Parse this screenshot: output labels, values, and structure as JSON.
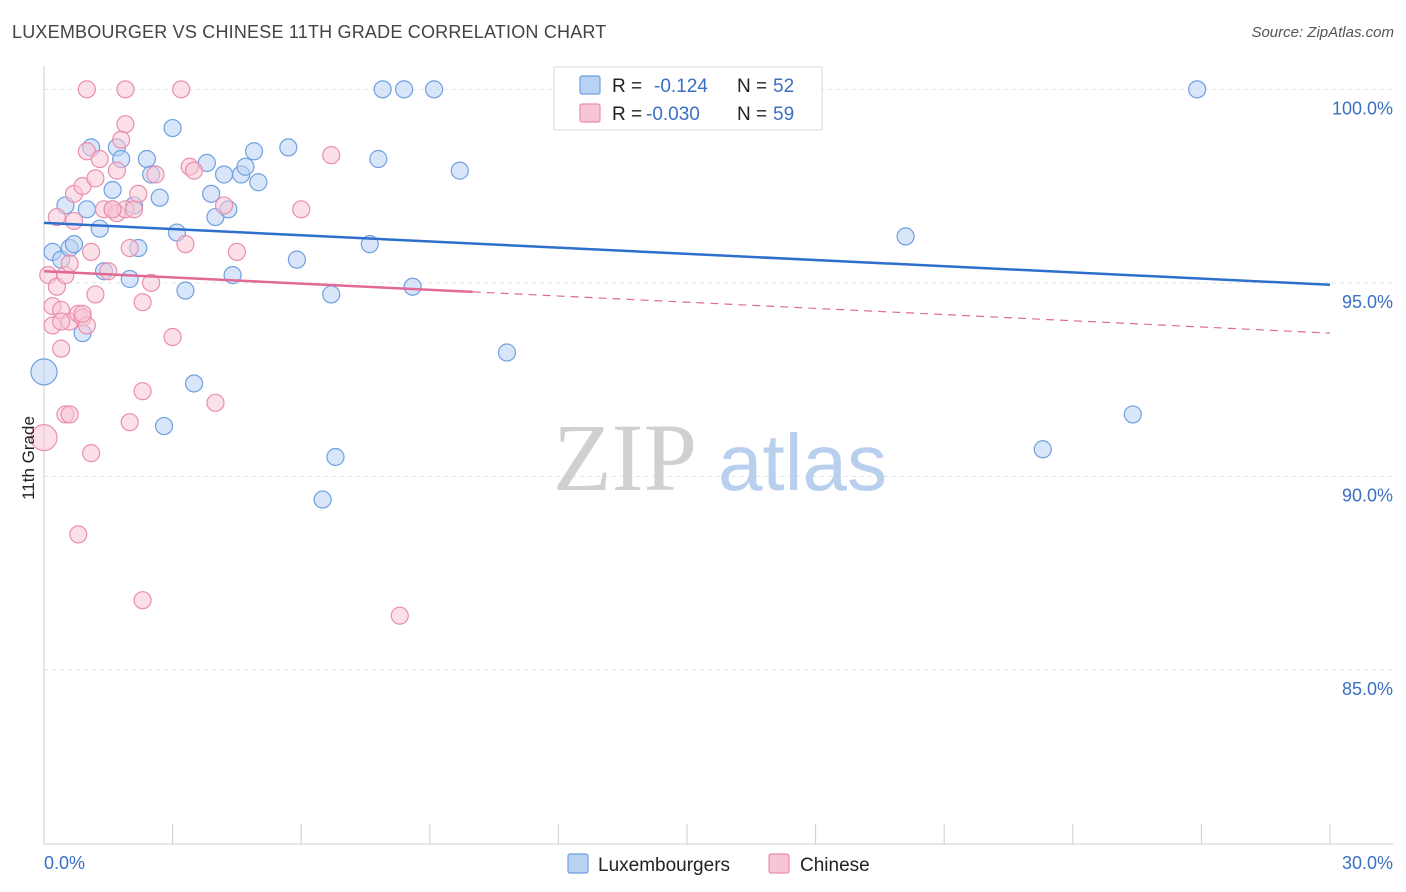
{
  "title": "LUXEMBOURGER VS CHINESE 11TH GRADE CORRELATION CHART",
  "source": "Source: ZipAtlas.com",
  "watermark": {
    "zip": "ZIP",
    "atlas": "atlas"
  },
  "chart_data": {
    "type": "scatter",
    "ylabel": "11th Grade",
    "xlim": [
      0,
      30
    ],
    "ylim": [
      80.5,
      100.5
    ],
    "x_tick_labels": {
      "min": "0.0%",
      "max": "30.0%"
    },
    "y_ticks": [
      {
        "value": 100,
        "label": "100.0%"
      },
      {
        "value": 95,
        "label": "95.0%"
      },
      {
        "value": 90,
        "label": "90.0%"
      },
      {
        "value": 85,
        "label": "85.0%"
      }
    ],
    "legend": {
      "rows": [
        {
          "r_label": "R =",
          "r_value": "-0.124",
          "n_label": "N =",
          "n_value": "52",
          "color": "#6fa0e0"
        },
        {
          "r_label": "R =",
          "r_value": "-0.030",
          "n_label": "N =",
          "n_value": "59",
          "color": "#e98fae"
        }
      ]
    },
    "series": [
      {
        "name": "Luxembourgers",
        "color": "#6fa0e0",
        "fill": "#b9d2f4",
        "trend": {
          "x0": 0,
          "y0": 96.55,
          "x1": 30,
          "y1": 94.95,
          "dash_from": null
        },
        "points": [
          [
            0.2,
            95.8
          ],
          [
            0.4,
            95.6
          ],
          [
            0.5,
            97.0
          ],
          [
            0.6,
            95.9
          ],
          [
            0.7,
            96.0
          ],
          [
            0.9,
            93.7
          ],
          [
            1.0,
            96.9
          ],
          [
            1.1,
            98.5
          ],
          [
            1.3,
            96.4
          ],
          [
            1.4,
            95.3
          ],
          [
            1.6,
            97.4
          ],
          [
            1.7,
            98.5
          ],
          [
            1.8,
            98.2
          ],
          [
            2.1,
            97.0
          ],
          [
            2.2,
            95.9
          ],
          [
            2.0,
            95.1
          ],
          [
            2.4,
            98.2
          ],
          [
            2.5,
            97.8
          ],
          [
            2.7,
            97.2
          ],
          [
            2.8,
            91.3
          ],
          [
            3.0,
            99.0
          ],
          [
            3.1,
            96.3
          ],
          [
            3.3,
            94.8
          ],
          [
            3.5,
            92.4
          ],
          [
            3.8,
            98.1
          ],
          [
            3.9,
            97.3
          ],
          [
            4.0,
            96.7
          ],
          [
            4.2,
            97.8
          ],
          [
            4.3,
            96.9
          ],
          [
            4.4,
            95.2
          ],
          [
            4.6,
            97.8
          ],
          [
            4.7,
            98.0
          ],
          [
            4.9,
            98.4
          ],
          [
            5.0,
            97.6
          ],
          [
            5.7,
            98.5
          ],
          [
            5.9,
            95.6
          ],
          [
            6.5,
            89.4
          ],
          [
            6.7,
            94.7
          ],
          [
            6.8,
            90.5
          ],
          [
            7.6,
            96.0
          ],
          [
            7.8,
            98.2
          ],
          [
            7.9,
            100.0
          ],
          [
            8.4,
            100.0
          ],
          [
            8.6,
            94.9
          ],
          [
            9.1,
            100.0
          ],
          [
            9.7,
            97.9
          ],
          [
            10.8,
            93.2
          ],
          [
            20.1,
            96.2
          ],
          [
            23.3,
            90.7
          ],
          [
            25.4,
            91.6
          ],
          [
            26.9,
            100.0
          ],
          [
            0.0,
            92.7
          ]
        ]
      },
      {
        "name": "Chinese",
        "color": "#e98fae",
        "fill": "#f7c6d6",
        "trend": {
          "x0": 0,
          "y0": 95.3,
          "x1": 30,
          "y1": 93.7,
          "dash_from": 10
        },
        "points": [
          [
            0.1,
            95.2
          ],
          [
            0.2,
            94.4
          ],
          [
            0.2,
            93.9
          ],
          [
            0.3,
            96.7
          ],
          [
            0.3,
            94.9
          ],
          [
            0.4,
            93.3
          ],
          [
            0.4,
            94.3
          ],
          [
            0.5,
            95.2
          ],
          [
            0.5,
            91.6
          ],
          [
            0.6,
            91.6
          ],
          [
            0.6,
            94.0
          ],
          [
            0.7,
            97.3
          ],
          [
            0.7,
            96.6
          ],
          [
            0.8,
            94.2
          ],
          [
            0.8,
            88.5
          ],
          [
            0.9,
            97.5
          ],
          [
            0.9,
            94.1
          ],
          [
            1.0,
            93.9
          ],
          [
            1.0,
            98.4
          ],
          [
            1.1,
            90.6
          ],
          [
            1.1,
            95.8
          ],
          [
            1.2,
            94.7
          ],
          [
            1.2,
            97.7
          ],
          [
            1.3,
            98.2
          ],
          [
            1.4,
            96.9
          ],
          [
            1.5,
            95.3
          ],
          [
            1.6,
            96.9
          ],
          [
            1.7,
            97.9
          ],
          [
            1.7,
            96.8
          ],
          [
            1.8,
            98.7
          ],
          [
            1.9,
            99.1
          ],
          [
            1.9,
            96.9
          ],
          [
            2.0,
            95.9
          ],
          [
            2.0,
            91.4
          ],
          [
            2.1,
            96.9
          ],
          [
            2.2,
            97.3
          ],
          [
            2.3,
            94.5
          ],
          [
            2.3,
            92.2
          ],
          [
            2.3,
            86.8
          ],
          [
            2.5,
            95.0
          ],
          [
            2.6,
            97.8
          ],
          [
            3.0,
            93.6
          ],
          [
            3.3,
            96.0
          ],
          [
            3.4,
            98.0
          ],
          [
            3.5,
            97.9
          ],
          [
            4.0,
            91.9
          ],
          [
            4.2,
            97.0
          ],
          [
            4.5,
            95.8
          ],
          [
            6.0,
            96.9
          ],
          [
            6.7,
            98.3
          ],
          [
            8.3,
            86.4
          ],
          [
            1.0,
            100.0
          ],
          [
            1.9,
            100.0
          ],
          [
            3.2,
            100.0
          ],
          [
            0.0,
            91.0
          ],
          [
            0.4,
            94.0
          ],
          [
            0.9,
            94.2
          ],
          [
            1.6,
            96.9
          ],
          [
            0.6,
            95.5
          ]
        ]
      }
    ]
  }
}
